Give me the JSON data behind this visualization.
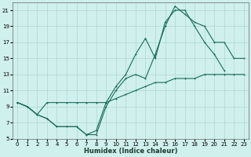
{
  "xlabel": "Humidex (Indice chaleur)",
  "bg_color": "#cff0ec",
  "grid_color": "#aed8d2",
  "line_color": "#1a6b5a",
  "xlim": [
    -0.5,
    23.5
  ],
  "ylim": [
    5,
    22
  ],
  "xticks": [
    0,
    1,
    2,
    3,
    4,
    5,
    6,
    7,
    8,
    9,
    10,
    11,
    12,
    13,
    14,
    15,
    16,
    17,
    18,
    19,
    20,
    21,
    22,
    23
  ],
  "yticks": [
    5,
    7,
    9,
    11,
    13,
    15,
    17,
    19,
    21
  ],
  "line1_x": [
    0,
    1,
    2,
    3,
    4,
    5,
    6,
    7,
    8,
    9,
    10,
    11,
    12,
    13,
    14,
    15,
    16,
    17,
    18,
    19,
    20,
    21,
    22,
    23
  ],
  "line1_y": [
    9.5,
    9.0,
    8.0,
    9.5,
    9.5,
    9.5,
    9.5,
    9.5,
    9.5,
    9.5,
    10.0,
    10.5,
    11.0,
    11.5,
    12.0,
    12.0,
    12.5,
    12.5,
    12.5,
    13.0,
    13.0,
    13.0,
    13.0,
    13.0
  ],
  "line2_x": [
    0,
    1,
    2,
    3,
    4,
    5,
    6,
    7,
    8,
    9,
    10,
    11,
    12,
    13,
    14,
    15,
    16,
    17,
    18,
    19,
    20,
    21,
    22,
    23
  ],
  "line2_y": [
    9.5,
    9.0,
    8.0,
    7.5,
    6.5,
    6.5,
    6.5,
    5.5,
    5.5,
    9.0,
    11.0,
    12.5,
    13.0,
    12.5,
    15.5,
    19.0,
    21.5,
    20.5,
    19.5,
    19.0,
    17.0,
    17.0,
    15.0,
    15.0
  ],
  "line3_x": [
    0,
    1,
    2,
    3,
    4,
    5,
    6,
    7,
    8,
    9,
    10,
    11,
    12,
    13,
    14,
    15,
    16,
    17,
    18,
    19,
    20,
    21,
    22,
    23
  ],
  "line3_y": [
    9.5,
    9.0,
    8.0,
    7.5,
    6.5,
    6.5,
    6.5,
    5.5,
    6.0,
    9.5,
    11.5,
    13.0,
    15.5,
    17.5,
    15.0,
    19.5,
    21.0,
    21.0,
    19.0,
    17.0,
    15.5,
    13.5,
    null,
    null
  ]
}
